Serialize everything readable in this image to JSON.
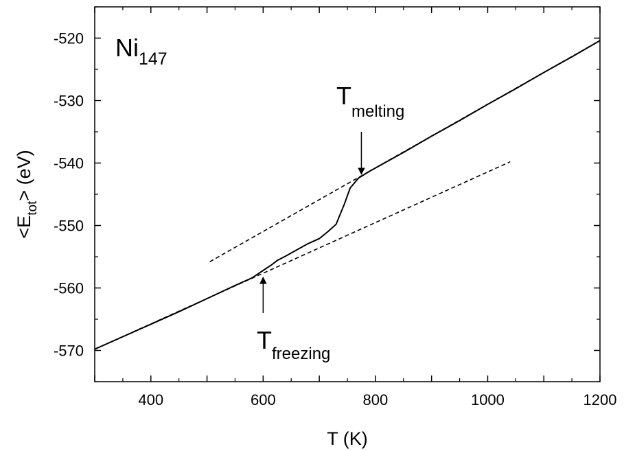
{
  "chart_data": {
    "type": "line",
    "title": "",
    "xlabel": "T (K)",
    "ylabel": "<E_tot> (eV)",
    "xlim": [
      300,
      1200
    ],
    "ylim": [
      -575,
      -515
    ],
    "grid": false,
    "x_ticks": [
      400,
      600,
      800,
      1000,
      1200
    ],
    "y_ticks": [
      -570,
      -560,
      -550,
      -540,
      -530,
      -520
    ],
    "series": [
      {
        "style": "solid",
        "color": "#000000",
        "x": [
          300,
          350,
          400,
          450,
          500,
          550,
          580,
          600,
          615,
          625,
          640,
          660,
          680,
          700,
          715,
          730,
          745,
          755,
          770,
          790,
          800,
          850,
          900,
          950,
          1000,
          1050,
          1100,
          1150,
          1200
        ],
        "y": [
          -569.8,
          -567.8,
          -565.8,
          -563.8,
          -561.7,
          -559.6,
          -558.4,
          -557.2,
          -556.3,
          -555.6,
          -554.9,
          -553.9,
          -552.9,
          -552.1,
          -551.0,
          -549.8,
          -546.5,
          -544.0,
          -542.4,
          -541.3,
          -540.8,
          -538.3,
          -535.7,
          -533.2,
          -530.6,
          -528.1,
          -525.5,
          -523.0,
          -520.4
        ]
      },
      {
        "style": "dashed",
        "color": "#000000",
        "x": [
          505,
          1200
        ],
        "y": [
          -555.8,
          -520.4
        ]
      },
      {
        "style": "dashed",
        "color": "#000000",
        "x": [
          300,
          1040
        ],
        "y": [
          -569.8,
          -539.8
        ]
      }
    ],
    "annotations": [
      {
        "kind": "label",
        "text": "Ni",
        "subscript": "147"
      },
      {
        "kind": "arrow",
        "text": "T",
        "subscript": "melting",
        "x": 775,
        "y": -541.8,
        "direction": "down"
      },
      {
        "kind": "arrow",
        "text": "T",
        "subscript": "freezing",
        "x": 600,
        "y": -558.3,
        "direction": "up"
      }
    ]
  }
}
